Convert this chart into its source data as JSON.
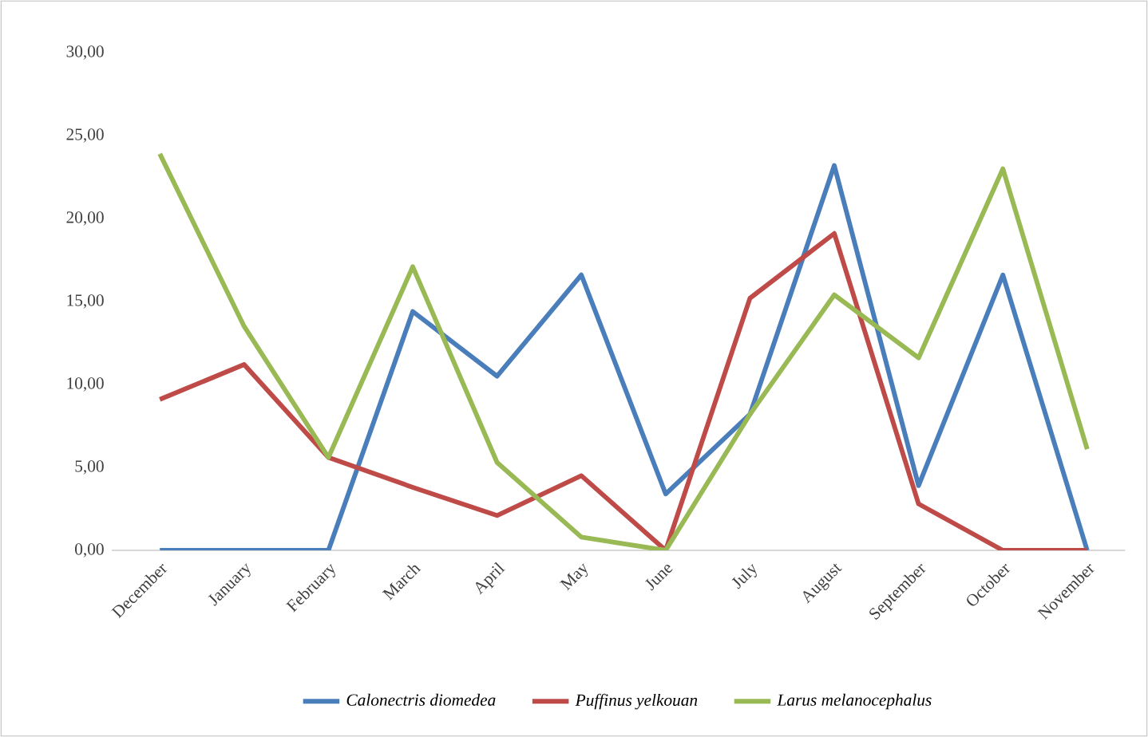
{
  "chart_data": {
    "type": "line",
    "categories": [
      "December",
      "January",
      "February",
      "March",
      "April",
      "May",
      "June",
      "July",
      "August",
      "September",
      "October",
      "November"
    ],
    "series": [
      {
        "name": "Calonectris diomedea",
        "color": "#4a7ebb",
        "values": [
          0,
          0,
          0,
          14.4,
          10.5,
          16.6,
          3.4,
          8.2,
          23.2,
          3.9,
          16.6,
          0
        ]
      },
      {
        "name": "Puffinus yelkouan",
        "color": "#be4b48",
        "values": [
          9.1,
          11.2,
          5.6,
          3.8,
          2.1,
          4.5,
          0,
          15.2,
          19.1,
          2.8,
          0,
          0
        ]
      },
      {
        "name": "Larus melanocephalus",
        "color": "#98b954",
        "values": [
          23.9,
          13.5,
          5.6,
          17.1,
          5.3,
          0.8,
          0,
          8.2,
          15.4,
          11.6,
          23.0,
          6.1
        ]
      }
    ],
    "ylim": [
      0,
      30
    ],
    "yticks": [
      {
        "value": 0,
        "label": "0,00"
      },
      {
        "value": 5,
        "label": "5,00"
      },
      {
        "value": 10,
        "label": "10,00"
      },
      {
        "value": 15,
        "label": "15,00"
      },
      {
        "value": 20,
        "label": "20,00"
      },
      {
        "value": 25,
        "label": "25,00"
      },
      {
        "value": 30,
        "label": "30,00"
      }
    ],
    "legend": "bottom",
    "grid": false,
    "marker": "none",
    "line_style": "solid"
  }
}
